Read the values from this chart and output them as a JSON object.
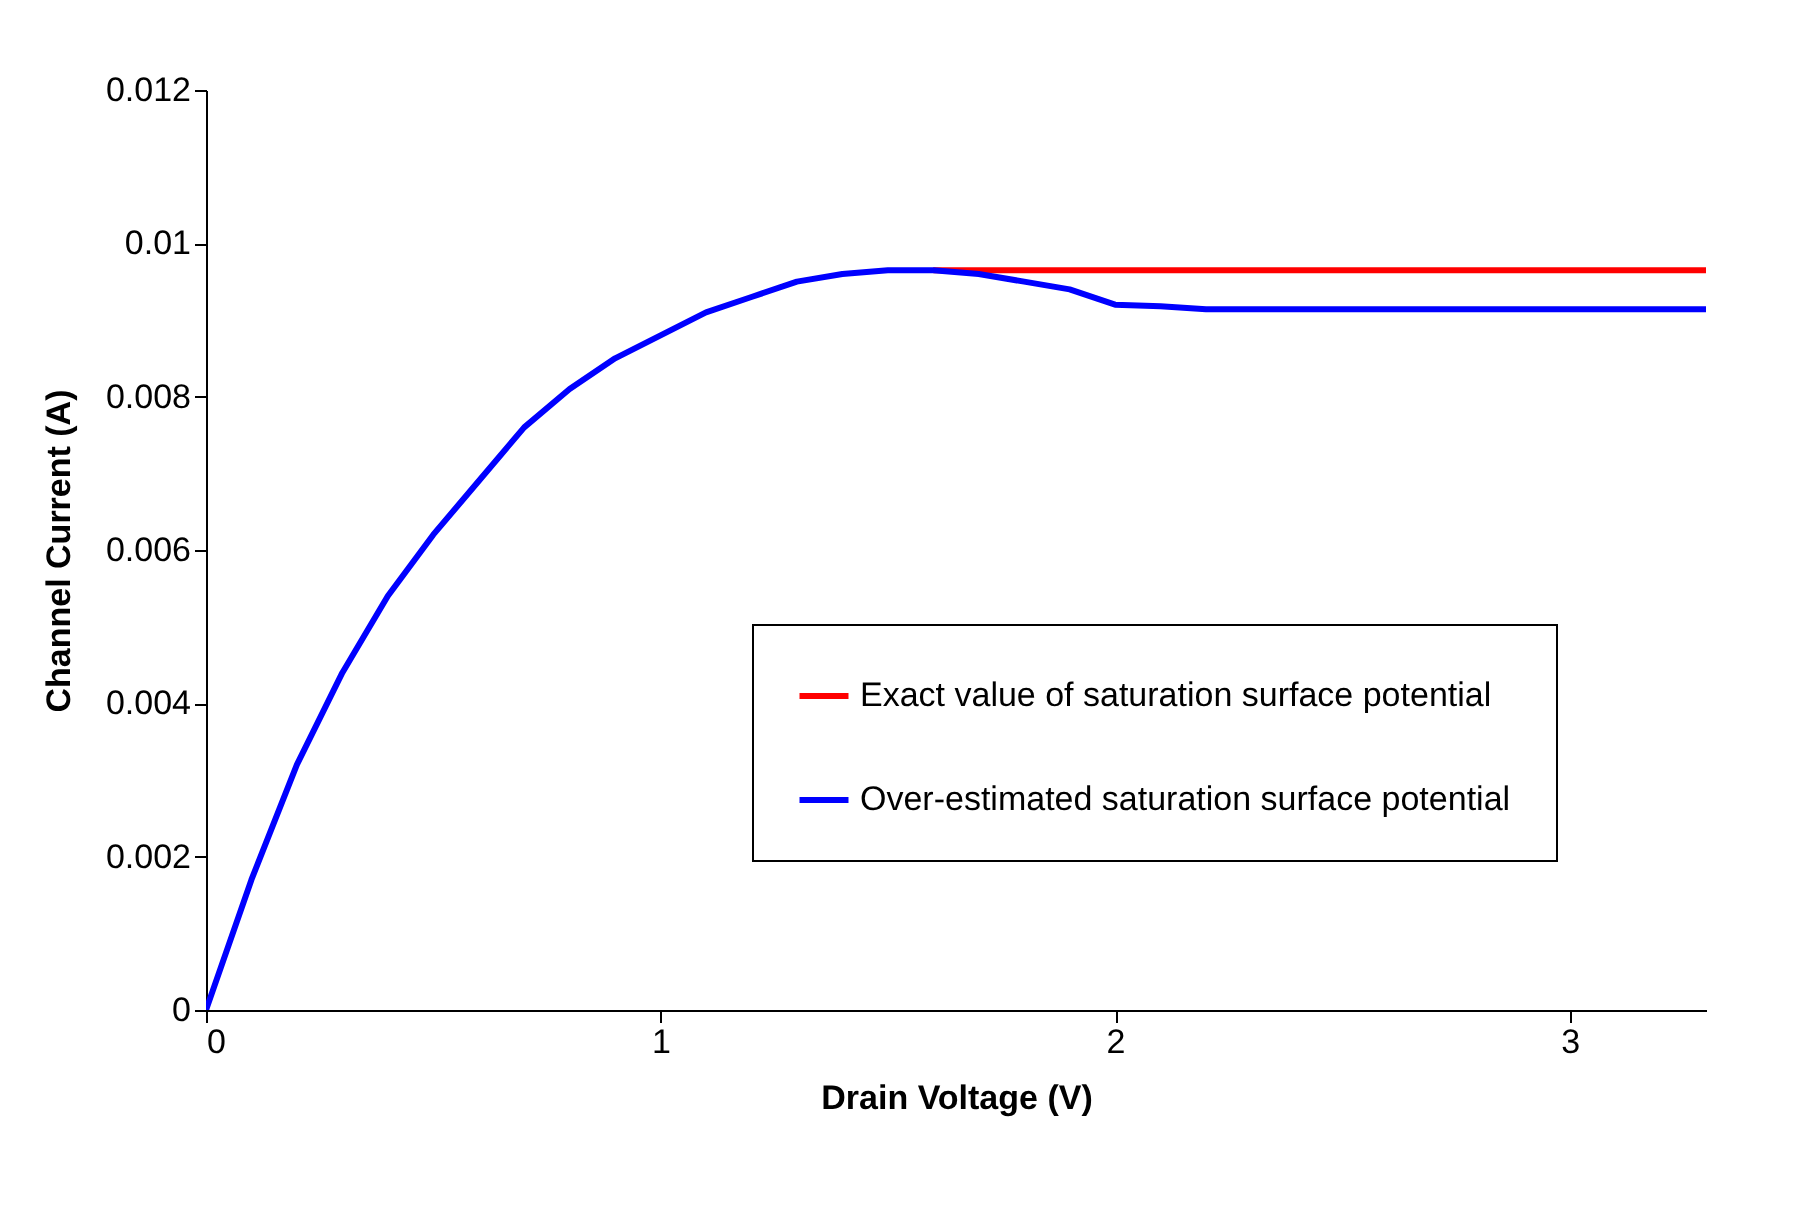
{
  "chart_data": {
    "type": "line",
    "xlabel": "Drain Voltage (V)",
    "ylabel": "Channel Current (A)",
    "x": [
      0,
      0.1,
      0.2,
      0.3,
      0.4,
      0.5,
      0.6,
      0.7,
      0.8,
      0.9,
      1.0,
      1.1,
      1.2,
      1.3,
      1.4,
      1.5,
      1.6,
      1.7,
      1.8,
      1.9,
      2.0,
      2.1,
      2.2,
      2.5,
      3.0,
      3.3
    ],
    "series": [
      {
        "name": "Exact value of saturation surface potential",
        "color": "#ff0000",
        "values": [
          null,
          null,
          null,
          null,
          null,
          null,
          null,
          null,
          null,
          null,
          null,
          null,
          null,
          null,
          null,
          null,
          0.00965,
          0.00965,
          0.00965,
          0.00965,
          0.00965,
          0.00965,
          0.00965,
          0.00965,
          0.00965,
          0.00965
        ]
      },
      {
        "name": "Over-estimated saturation surface potential",
        "color": "#0000ff",
        "values": [
          0,
          0.0017,
          0.0032,
          0.0044,
          0.0054,
          0.0062,
          0.0069,
          0.0076,
          0.0081,
          0.0085,
          0.0088,
          0.0091,
          0.0093,
          0.0095,
          0.0096,
          0.00965,
          0.00965,
          0.0096,
          0.0095,
          0.0094,
          0.0092,
          0.00918,
          0.00914,
          0.00914,
          0.00914,
          0.00914
        ]
      }
    ],
    "xlim": [
      0,
      3.3
    ],
    "xticks": [
      0,
      1,
      2,
      3
    ],
    "ylim": [
      0,
      0.012
    ],
    "yticks": [
      0,
      0.002,
      0.004,
      0.006,
      0.008,
      0.01,
      0.012
    ],
    "grid": false,
    "legend": "bottom right",
    "marker": "none",
    "line_style": "solid"
  }
}
